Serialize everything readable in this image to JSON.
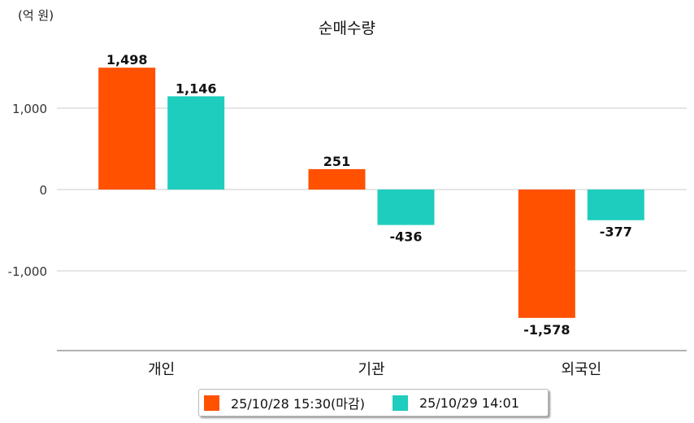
{
  "chart_data": {
    "type": "bar",
    "title": "순매수량",
    "unit_label": "(억 원)",
    "xlabel": "",
    "ylabel": "",
    "categories": [
      "개인",
      "기관",
      "외국인"
    ],
    "ylim": [
      -2000,
      2000
    ],
    "yticks": [
      1000,
      0,
      -1000
    ],
    "ytick_labels": [
      "1,000",
      "0",
      "-1,000"
    ],
    "grid": true,
    "legend_position": "bottom-center",
    "series": [
      {
        "name": "25/10/28 15:30(마감)",
        "color": "#ff5100",
        "values": [
          1498,
          251,
          -1578
        ],
        "labels": [
          "1,498",
          "251",
          "-1,578"
        ]
      },
      {
        "name": "25/10/29 14:01",
        "color": "#1ecdbd",
        "values": [
          1146,
          -436,
          -377
        ],
        "labels": [
          "1,146",
          "-436",
          "-377"
        ]
      }
    ]
  }
}
